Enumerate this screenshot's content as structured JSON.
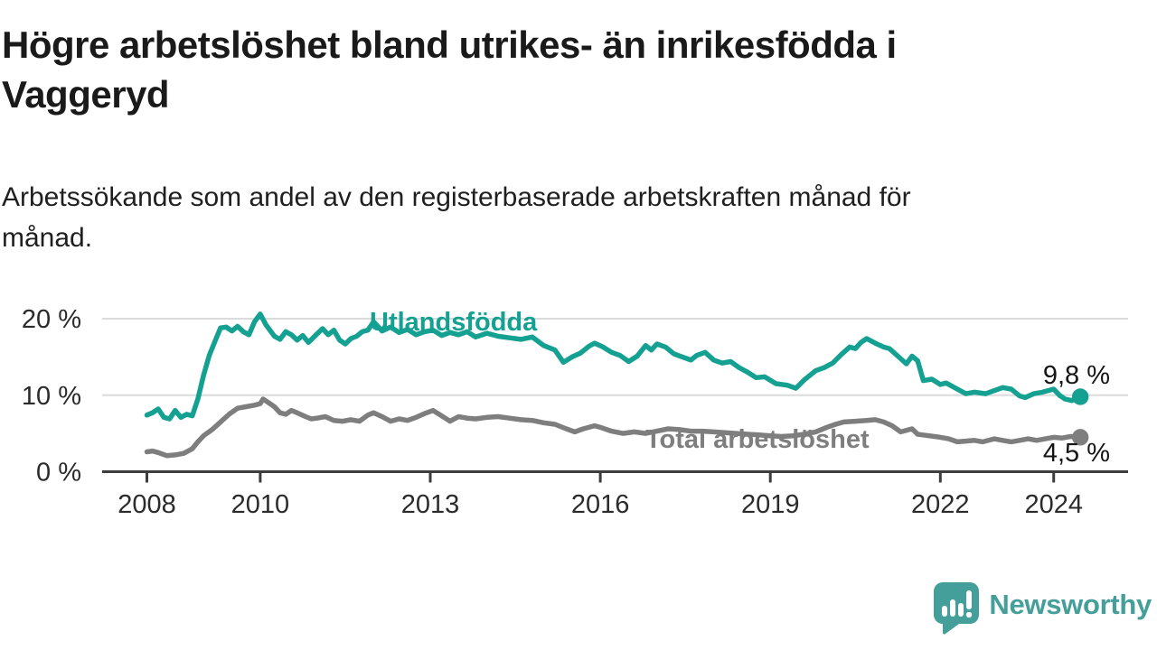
{
  "header": {
    "title_lines": [
      "Högre arbetslöshet bland utrikes- än inrikesfödda i",
      "Vaggeryd"
    ],
    "subtitle_lines": [
      "Arbetssökande som andel av den registerbaserade arbetskraften månad för",
      "månad."
    ]
  },
  "colors": {
    "foreign_born_line": "#14A192",
    "total_line": "#7E7E7E",
    "gridline": "#DBDBDB",
    "axis": "#3D3D3D",
    "tick_label": "#2B2B2B",
    "end_label": "#151515",
    "logo_teal": "#449E9A"
  },
  "chart_data": {
    "type": "line",
    "title": "Högre arbetslöshet bland utrikes- än inrikesfödda i Vaggeryd",
    "subtitle": "Arbetssökande som andel av den registerbaserade arbetskraften månad för månad.",
    "xlabel": "",
    "ylabel": "",
    "grid": "horizontal-only",
    "legend_position": "inline-labels-on-lines",
    "x_domain": [
      2008.0,
      2024.47
    ],
    "ylim": [
      0,
      21.5
    ],
    "yticks": [
      {
        "value": 0,
        "label": "0 %"
      },
      {
        "value": 10,
        "label": "10 %"
      },
      {
        "value": 20,
        "label": "20 %"
      }
    ],
    "xticks": [
      {
        "value": 2008,
        "label": "2008"
      },
      {
        "value": 2010,
        "label": "2010"
      },
      {
        "value": 2013,
        "label": "2013"
      },
      {
        "value": 2016,
        "label": "2016"
      },
      {
        "value": 2019,
        "label": "2019"
      },
      {
        "value": 2022,
        "label": "2022"
      },
      {
        "value": 2024,
        "label": "2024"
      }
    ],
    "series": [
      {
        "name": "Utlandsfödda",
        "color": "#14A192",
        "end_value": 9.8,
        "end_label": "9,8 %",
        "points": [
          [
            2008.0,
            7.4
          ],
          [
            2008.1,
            7.7
          ],
          [
            2008.2,
            8.2
          ],
          [
            2008.3,
            7.1
          ],
          [
            2008.4,
            6.9
          ],
          [
            2008.5,
            8.0
          ],
          [
            2008.6,
            7.1
          ],
          [
            2008.7,
            7.5
          ],
          [
            2008.8,
            7.3
          ],
          [
            2008.9,
            9.5
          ],
          [
            2009.0,
            12.6
          ],
          [
            2009.1,
            15.2
          ],
          [
            2009.2,
            17.0
          ],
          [
            2009.3,
            18.8
          ],
          [
            2009.4,
            18.9
          ],
          [
            2009.5,
            18.4
          ],
          [
            2009.6,
            19.0
          ],
          [
            2009.7,
            18.3
          ],
          [
            2009.8,
            17.9
          ],
          [
            2009.9,
            19.6
          ],
          [
            2010.0,
            20.6
          ],
          [
            2010.1,
            19.2
          ],
          [
            2010.25,
            17.7
          ],
          [
            2010.35,
            17.3
          ],
          [
            2010.45,
            18.3
          ],
          [
            2010.55,
            17.9
          ],
          [
            2010.65,
            17.2
          ],
          [
            2010.75,
            17.8
          ],
          [
            2010.85,
            16.9
          ],
          [
            2011.0,
            18.0
          ],
          [
            2011.1,
            18.7
          ],
          [
            2011.2,
            17.9
          ],
          [
            2011.3,
            18.5
          ],
          [
            2011.4,
            17.2
          ],
          [
            2011.5,
            16.7
          ],
          [
            2011.6,
            17.4
          ],
          [
            2011.7,
            17.7
          ],
          [
            2011.8,
            18.3
          ],
          [
            2011.9,
            18.5
          ],
          [
            2012.0,
            19.6
          ],
          [
            2012.15,
            18.4
          ],
          [
            2012.3,
            18.9
          ],
          [
            2012.45,
            18.2
          ],
          [
            2012.6,
            18.6
          ],
          [
            2012.75,
            17.9
          ],
          [
            2012.9,
            18.3
          ],
          [
            2013.05,
            18.5
          ],
          [
            2013.2,
            17.8
          ],
          [
            2013.35,
            18.2
          ],
          [
            2013.5,
            17.9
          ],
          [
            2013.65,
            18.3
          ],
          [
            2013.8,
            17.6
          ],
          [
            2014.0,
            18.1
          ],
          [
            2014.2,
            17.7
          ],
          [
            2014.4,
            17.5
          ],
          [
            2014.6,
            17.3
          ],
          [
            2014.8,
            17.6
          ],
          [
            2015.0,
            16.5
          ],
          [
            2015.2,
            15.9
          ],
          [
            2015.35,
            14.3
          ],
          [
            2015.5,
            15.0
          ],
          [
            2015.65,
            15.5
          ],
          [
            2015.8,
            16.4
          ],
          [
            2015.9,
            16.8
          ],
          [
            2016.05,
            16.3
          ],
          [
            2016.2,
            15.6
          ],
          [
            2016.35,
            15.2
          ],
          [
            2016.5,
            14.4
          ],
          [
            2016.65,
            15.1
          ],
          [
            2016.8,
            16.5
          ],
          [
            2016.9,
            15.9
          ],
          [
            2017.0,
            16.7
          ],
          [
            2017.15,
            16.3
          ],
          [
            2017.3,
            15.4
          ],
          [
            2017.45,
            15.0
          ],
          [
            2017.6,
            14.6
          ],
          [
            2017.7,
            15.2
          ],
          [
            2017.85,
            15.6
          ],
          [
            2018.0,
            14.6
          ],
          [
            2018.15,
            14.2
          ],
          [
            2018.3,
            14.4
          ],
          [
            2018.45,
            13.6
          ],
          [
            2018.6,
            13.0
          ],
          [
            2018.75,
            12.3
          ],
          [
            2018.9,
            12.4
          ],
          [
            2019.1,
            11.5
          ],
          [
            2019.3,
            11.3
          ],
          [
            2019.45,
            10.9
          ],
          [
            2019.6,
            12.0
          ],
          [
            2019.8,
            13.2
          ],
          [
            2019.95,
            13.6
          ],
          [
            2020.1,
            14.2
          ],
          [
            2020.25,
            15.3
          ],
          [
            2020.4,
            16.3
          ],
          [
            2020.5,
            16.1
          ],
          [
            2020.6,
            16.9
          ],
          [
            2020.7,
            17.4
          ],
          [
            2020.85,
            16.8
          ],
          [
            2021.0,
            16.3
          ],
          [
            2021.1,
            16.1
          ],
          [
            2021.25,
            15.1
          ],
          [
            2021.4,
            14.1
          ],
          [
            2021.5,
            15.1
          ],
          [
            2021.6,
            14.5
          ],
          [
            2021.7,
            11.9
          ],
          [
            2021.85,
            12.1
          ],
          [
            2022.0,
            11.4
          ],
          [
            2022.1,
            11.6
          ],
          [
            2022.3,
            10.8
          ],
          [
            2022.45,
            10.2
          ],
          [
            2022.6,
            10.4
          ],
          [
            2022.8,
            10.2
          ],
          [
            2022.95,
            10.6
          ],
          [
            2023.1,
            11.0
          ],
          [
            2023.25,
            10.8
          ],
          [
            2023.4,
            9.9
          ],
          [
            2023.5,
            9.7
          ],
          [
            2023.65,
            10.2
          ],
          [
            2023.8,
            10.4
          ],
          [
            2024.0,
            10.8
          ],
          [
            2024.1,
            10.0
          ],
          [
            2024.2,
            9.5
          ],
          [
            2024.32,
            9.3
          ],
          [
            2024.42,
            9.7
          ],
          [
            2024.47,
            9.8
          ]
        ]
      },
      {
        "name": "Total arbetslöshet",
        "color": "#7E7E7E",
        "end_value": 4.5,
        "end_label": "4,5 %",
        "points": [
          [
            2008.0,
            2.6
          ],
          [
            2008.1,
            2.7
          ],
          [
            2008.2,
            2.5
          ],
          [
            2008.35,
            2.1
          ],
          [
            2008.5,
            2.2
          ],
          [
            2008.65,
            2.4
          ],
          [
            2008.8,
            3.0
          ],
          [
            2008.9,
            3.9
          ],
          [
            2009.0,
            4.7
          ],
          [
            2009.15,
            5.5
          ],
          [
            2009.3,
            6.5
          ],
          [
            2009.45,
            7.5
          ],
          [
            2009.6,
            8.3
          ],
          [
            2009.75,
            8.5
          ],
          [
            2009.9,
            8.7
          ],
          [
            2010.0,
            8.9
          ],
          [
            2010.05,
            9.5
          ],
          [
            2010.15,
            9.0
          ],
          [
            2010.25,
            8.5
          ],
          [
            2010.35,
            7.7
          ],
          [
            2010.45,
            7.5
          ],
          [
            2010.55,
            8.0
          ],
          [
            2010.65,
            7.7
          ],
          [
            2010.8,
            7.2
          ],
          [
            2010.9,
            6.9
          ],
          [
            2011.0,
            7.0
          ],
          [
            2011.15,
            7.2
          ],
          [
            2011.3,
            6.7
          ],
          [
            2011.45,
            6.6
          ],
          [
            2011.6,
            6.8
          ],
          [
            2011.75,
            6.6
          ],
          [
            2011.9,
            7.4
          ],
          [
            2012.0,
            7.7
          ],
          [
            2012.15,
            7.2
          ],
          [
            2012.3,
            6.6
          ],
          [
            2012.45,
            6.9
          ],
          [
            2012.6,
            6.7
          ],
          [
            2012.75,
            7.1
          ],
          [
            2012.9,
            7.6
          ],
          [
            2013.05,
            8.0
          ],
          [
            2013.2,
            7.3
          ],
          [
            2013.35,
            6.6
          ],
          [
            2013.5,
            7.2
          ],
          [
            2013.65,
            7.0
          ],
          [
            2013.8,
            6.9
          ],
          [
            2014.0,
            7.1
          ],
          [
            2014.2,
            7.2
          ],
          [
            2014.4,
            7.0
          ],
          [
            2014.6,
            6.8
          ],
          [
            2014.8,
            6.7
          ],
          [
            2015.0,
            6.4
          ],
          [
            2015.2,
            6.2
          ],
          [
            2015.4,
            5.6
          ],
          [
            2015.55,
            5.2
          ],
          [
            2015.7,
            5.6
          ],
          [
            2015.9,
            6.0
          ],
          [
            2016.0,
            5.8
          ],
          [
            2016.2,
            5.3
          ],
          [
            2016.4,
            5.0
          ],
          [
            2016.6,
            5.2
          ],
          [
            2016.8,
            5.0
          ],
          [
            2017.0,
            5.3
          ],
          [
            2017.2,
            5.6
          ],
          [
            2017.4,
            5.5
          ],
          [
            2017.6,
            5.3
          ],
          [
            2017.8,
            5.3
          ],
          [
            2018.0,
            5.2
          ],
          [
            2018.2,
            5.1
          ],
          [
            2018.4,
            5.0
          ],
          [
            2018.6,
            4.9
          ],
          [
            2018.8,
            4.8
          ],
          [
            2019.0,
            4.7
          ],
          [
            2019.2,
            4.6
          ],
          [
            2019.4,
            4.7
          ],
          [
            2019.6,
            4.9
          ],
          [
            2019.8,
            5.2
          ],
          [
            2020.0,
            5.8
          ],
          [
            2020.15,
            6.2
          ],
          [
            2020.3,
            6.5
          ],
          [
            2020.5,
            6.6
          ],
          [
            2020.7,
            6.7
          ],
          [
            2020.85,
            6.8
          ],
          [
            2021.0,
            6.5
          ],
          [
            2021.15,
            6.0
          ],
          [
            2021.3,
            5.2
          ],
          [
            2021.5,
            5.6
          ],
          [
            2021.6,
            4.9
          ],
          [
            2021.8,
            4.7
          ],
          [
            2022.0,
            4.5
          ],
          [
            2022.15,
            4.3
          ],
          [
            2022.3,
            3.9
          ],
          [
            2022.45,
            4.0
          ],
          [
            2022.6,
            4.1
          ],
          [
            2022.75,
            3.9
          ],
          [
            2022.95,
            4.3
          ],
          [
            2023.1,
            4.1
          ],
          [
            2023.25,
            3.9
          ],
          [
            2023.4,
            4.1
          ],
          [
            2023.55,
            4.3
          ],
          [
            2023.7,
            4.1
          ],
          [
            2023.85,
            4.3
          ],
          [
            2024.0,
            4.5
          ],
          [
            2024.15,
            4.4
          ],
          [
            2024.3,
            4.6
          ],
          [
            2024.47,
            4.5
          ]
        ]
      }
    ]
  },
  "branding": {
    "logo_text": "Newsworthy",
    "logo_icon": "bar-chart-speech-bubble-icon"
  }
}
